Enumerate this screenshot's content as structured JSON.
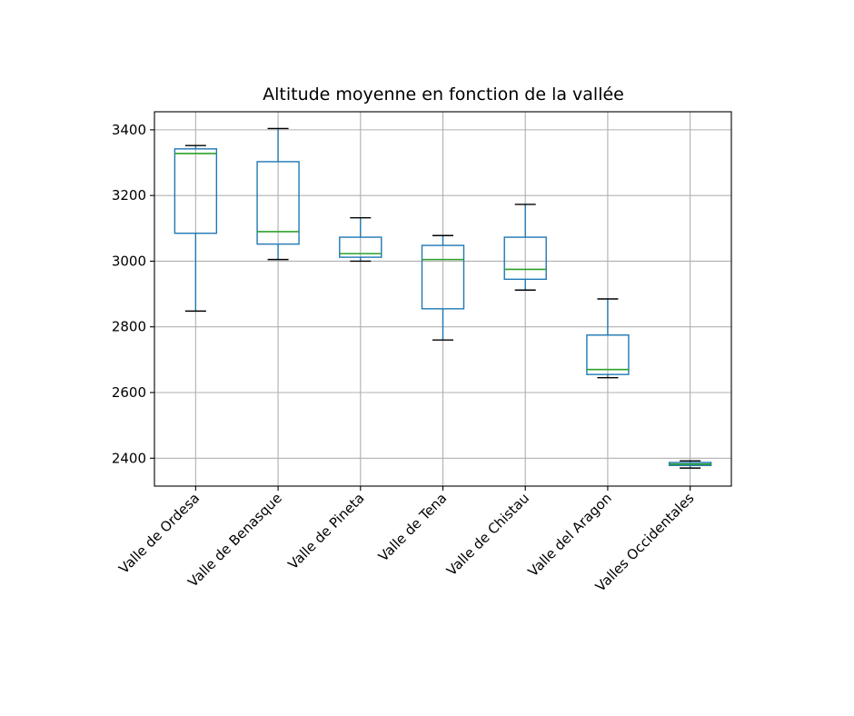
{
  "chart_data": {
    "type": "box",
    "title": "Altitude moyenne en fonction de la vallée",
    "xlabel": "",
    "ylabel": "",
    "ylim": [
      2315,
      3455
    ],
    "yticks": [
      2400,
      2600,
      2800,
      3000,
      3200,
      3400
    ],
    "grid": true,
    "colors": {
      "box": "#1f77b4",
      "median": "#2ca02c",
      "whisker_cap": "#000000",
      "grid": "#b0b0b0"
    },
    "categories": [
      "Valle de Ordesa",
      "Valle de Benasque",
      "Valle de Pineta",
      "Valle de Tena",
      "Valle de Chistau",
      "Valle del Aragon",
      "Valles Occidentales"
    ],
    "boxes": [
      {
        "whislo": 2848,
        "q1": 3085,
        "med": 3328,
        "q3": 3342,
        "whishi": 3352
      },
      {
        "whislo": 3005,
        "q1": 3052,
        "med": 3090,
        "q3": 3303,
        "whishi": 3404
      },
      {
        "whislo": 3000,
        "q1": 3012,
        "med": 3023,
        "q3": 3073,
        "whishi": 3132
      },
      {
        "whislo": 2760,
        "q1": 2855,
        "med": 3005,
        "q3": 3048,
        "whishi": 3078
      },
      {
        "whislo": 2912,
        "q1": 2945,
        "med": 2975,
        "q3": 3073,
        "whishi": 3173
      },
      {
        "whislo": 2645,
        "q1": 2655,
        "med": 2670,
        "q3": 2775,
        "whishi": 2885
      },
      {
        "whislo": 2370,
        "q1": 2378,
        "med": 2382,
        "q3": 2387,
        "whishi": 2392
      }
    ]
  }
}
